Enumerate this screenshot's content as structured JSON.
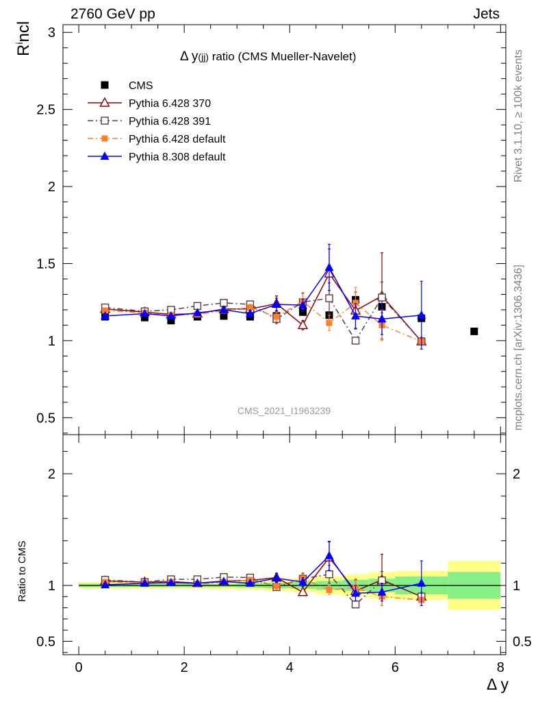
{
  "header": {
    "left": "2760 GeV pp",
    "right": "Jets"
  },
  "side_labels": {
    "top": "Rivet 3.1.10, ≥ 100k events",
    "bottom": "mcplots.cern.ch [arXiv:1306.3436]"
  },
  "watermark": "CMS_2021_I1963239",
  "chart_data": [
    {
      "type": "line",
      "title_main": "Δ y",
      "title_sub": "(jj)",
      "title_rest": " ratio (CMS Mueller-Navelet)",
      "ylabel_main": "R",
      "ylabel_sup": "i",
      "ylabel_rest": "ncl",
      "xlim": [
        -0.3,
        8.1
      ],
      "ylim": [
        0.39,
        3.05
      ],
      "yticks": [
        0.5,
        1,
        1.5,
        2,
        2.5,
        3
      ],
      "ytick_labels": [
        "0.5",
        "1",
        "1.5",
        "2",
        "2.5",
        "3"
      ],
      "legend_position": "top-left",
      "series": [
        {
          "name": "CMS",
          "color": "#000000",
          "marker": "square-filled",
          "line": "none",
          "x": [
            0.5,
            1.25,
            1.75,
            2.25,
            2.75,
            3.25,
            3.75,
            4.25,
            4.75,
            5.25,
            5.75,
            6.5,
            7.5
          ],
          "y": [
            1.155,
            1.15,
            1.13,
            1.155,
            1.16,
            1.155,
            1.16,
            1.185,
            1.165,
            1.265,
            1.22,
            1.145,
            1.06
          ]
        },
        {
          "name": "Pythia 6.428 370",
          "color": "#8b0000",
          "marker": "triangle-open",
          "line": "solid",
          "x": [
            0.5,
            1.25,
            1.75,
            2.25,
            2.75,
            3.25,
            3.75,
            4.25,
            4.75,
            5.25,
            5.75,
            6.5
          ],
          "y": [
            1.205,
            1.185,
            1.17,
            1.175,
            1.205,
            1.205,
            1.24,
            1.1,
            1.435,
            1.195,
            1.29,
            0.995
          ],
          "err": [
            0.01,
            0.01,
            0.01,
            0.01,
            0.01,
            0.02,
            0.05,
            0.03,
            0.16,
            0.12,
            0.28,
            0.0
          ]
        },
        {
          "name": "Pythia 6.428 391",
          "color": "#5a3a3a",
          "marker": "square-open",
          "line": "dashdot",
          "x": [
            0.5,
            1.25,
            1.75,
            2.25,
            2.75,
            3.25,
            3.75,
            4.25,
            4.75,
            5.25,
            5.75,
            6.5
          ],
          "y": [
            1.215,
            1.19,
            1.2,
            1.225,
            1.245,
            1.235,
            1.14,
            1.25,
            1.275,
            1.0,
            1.28,
            0.995
          ],
          "err": [
            0.01,
            0.01,
            0.01,
            0.01,
            0.01,
            0.02,
            0.03,
            0.06,
            0.1,
            0.02,
            0.1,
            0.0
          ]
        },
        {
          "name": "Pythia 6.428 default",
          "color": "#ff7f2a",
          "marker": "square-filled-small",
          "line": "dashdot",
          "x": [
            0.5,
            1.25,
            1.75,
            2.25,
            2.75,
            3.25,
            3.75,
            4.25,
            4.75,
            5.25,
            5.75,
            6.5
          ],
          "y": [
            1.195,
            1.18,
            1.165,
            1.17,
            1.195,
            1.215,
            1.155,
            1.255,
            1.115,
            1.245,
            1.1,
            0.995
          ],
          "err": [
            0.01,
            0.01,
            0.01,
            0.01,
            0.01,
            0.02,
            0.03,
            0.05,
            0.05,
            0.1,
            0.1,
            0.0
          ]
        },
        {
          "name": "Pythia 8.308 default",
          "color": "#0000ff",
          "marker": "triangle-filled",
          "line": "solid",
          "x": [
            0.5,
            1.25,
            1.75,
            2.25,
            2.75,
            3.25,
            3.75,
            4.25,
            4.75,
            5.25,
            5.75,
            6.5
          ],
          "y": [
            1.16,
            1.175,
            1.16,
            1.18,
            1.2,
            1.175,
            1.235,
            1.23,
            1.475,
            1.16,
            1.14,
            1.165
          ],
          "err": [
            0.01,
            0.01,
            0.01,
            0.01,
            0.01,
            0.02,
            0.04,
            0.04,
            0.15,
            0.08,
            0.1,
            0.22
          ]
        }
      ]
    },
    {
      "type": "line",
      "ylabel": "Ratio to CMS",
      "xlabel": "Δ y",
      "xlim": [
        -0.3,
        8.1
      ],
      "ylim": [
        0.38,
        2.35
      ],
      "xticks": [
        0,
        2,
        4,
        6,
        8
      ],
      "xtick_labels": [
        "0",
        "2",
        "4",
        "6",
        "8"
      ],
      "yticks": [
        0.5,
        1,
        2
      ],
      "ytick_labels": [
        "0.5",
        "1",
        "2"
      ],
      "reference_line": 1,
      "bands": {
        "edges": [
          0,
          0.75,
          1.5,
          2.0,
          2.5,
          3.0,
          3.5,
          4.0,
          4.5,
          5.0,
          5.5,
          6.0,
          7.0,
          8.0
        ],
        "green_half_width": [
          0.015,
          0.015,
          0.015,
          0.015,
          0.015,
          0.02,
          0.025,
          0.03,
          0.04,
          0.05,
          0.06,
          0.08,
          0.12
        ],
        "yellow_half_width": [
          0.03,
          0.03,
          0.03,
          0.03,
          0.035,
          0.04,
          0.05,
          0.06,
          0.08,
          0.1,
          0.12,
          0.13,
          0.22
        ]
      },
      "series": [
        {
          "name": "Pythia 6.428 370",
          "color": "#8b0000",
          "marker": "triangle-open",
          "line": "solid",
          "x": [
            0.5,
            1.25,
            1.75,
            2.25,
            2.75,
            3.25,
            3.75,
            4.25,
            4.75,
            5.25,
            5.75,
            6.5
          ],
          "y": [
            1.04,
            1.03,
            1.035,
            1.02,
            1.04,
            1.045,
            1.07,
            0.94,
            1.25,
            0.95,
            1.05,
            0.9
          ],
          "err": [
            0.01,
            0.01,
            0.01,
            0.01,
            0.01,
            0.02,
            0.04,
            0.03,
            0.14,
            0.1,
            0.23,
            0.0
          ]
        },
        {
          "name": "Pythia 6.428 391",
          "color": "#5a3a3a",
          "marker": "square-open",
          "line": "dashdot",
          "x": [
            0.5,
            1.25,
            1.75,
            2.25,
            2.75,
            3.25,
            3.75,
            4.25,
            4.75,
            5.25,
            5.75,
            6.5
          ],
          "y": [
            1.05,
            1.03,
            1.055,
            1.055,
            1.075,
            1.07,
            0.985,
            1.06,
            1.1,
            0.83,
            1.045,
            0.9
          ],
          "err": [
            0.01,
            0.01,
            0.01,
            0.01,
            0.01,
            0.02,
            0.03,
            0.05,
            0.08,
            0.02,
            0.08,
            0.0
          ]
        },
        {
          "name": "Pythia 6.428 default",
          "color": "#ff7f2a",
          "marker": "square-filled-small",
          "line": "dashdot",
          "x": [
            0.5,
            1.25,
            1.75,
            2.25,
            2.75,
            3.25,
            3.75,
            4.25,
            4.75,
            5.25,
            5.75,
            6.5
          ],
          "y": [
            1.03,
            1.025,
            1.03,
            1.015,
            1.03,
            1.05,
            0.995,
            1.06,
            0.96,
            0.98,
            0.9,
            0.87
          ],
          "err": [
            0.01,
            0.01,
            0.01,
            0.01,
            0.01,
            0.02,
            0.03,
            0.04,
            0.04,
            0.08,
            0.08,
            0.0
          ]
        },
        {
          "name": "Pythia 8.308 default",
          "color": "#0000ff",
          "marker": "triangle-filled",
          "line": "solid",
          "x": [
            0.5,
            1.25,
            1.75,
            2.25,
            2.75,
            3.25,
            3.75,
            4.25,
            4.75,
            5.25,
            5.75,
            6.5
          ],
          "y": [
            1.005,
            1.02,
            1.025,
            1.02,
            1.035,
            1.02,
            1.065,
            1.03,
            1.265,
            0.93,
            0.94,
            1.02
          ],
          "err": [
            0.01,
            0.01,
            0.01,
            0.01,
            0.01,
            0.02,
            0.04,
            0.04,
            0.13,
            0.07,
            0.08,
            0.2
          ]
        }
      ]
    }
  ]
}
